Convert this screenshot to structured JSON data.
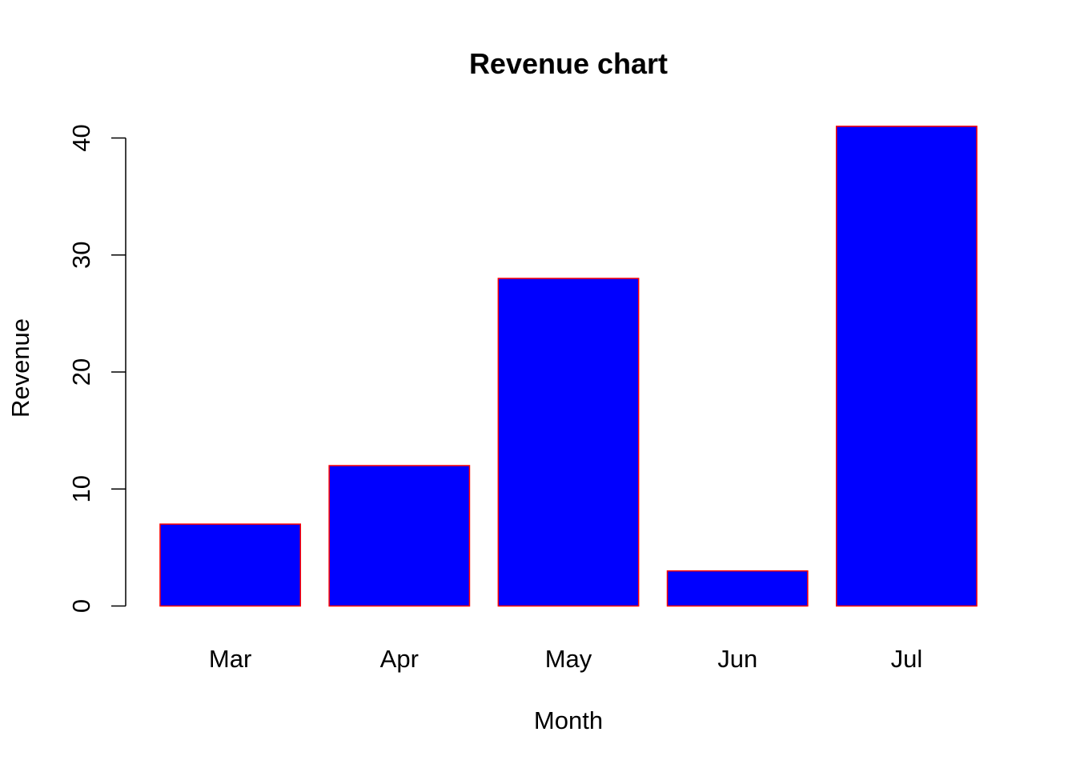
{
  "chart_data": {
    "type": "bar",
    "title": "Revenue chart",
    "xlabel": "Month",
    "ylabel": "Revenue",
    "categories": [
      "Mar",
      "Apr",
      "May",
      "Jun",
      "Jul"
    ],
    "values": [
      7,
      12,
      28,
      3,
      41
    ],
    "ylim": [
      0,
      40
    ],
    "yticks": [
      "0",
      "10",
      "20",
      "30",
      "40"
    ],
    "grid": false,
    "colors": {
      "bar_fill": "#0000FF",
      "bar_border": "#FF0000",
      "axis": "#000000"
    }
  }
}
